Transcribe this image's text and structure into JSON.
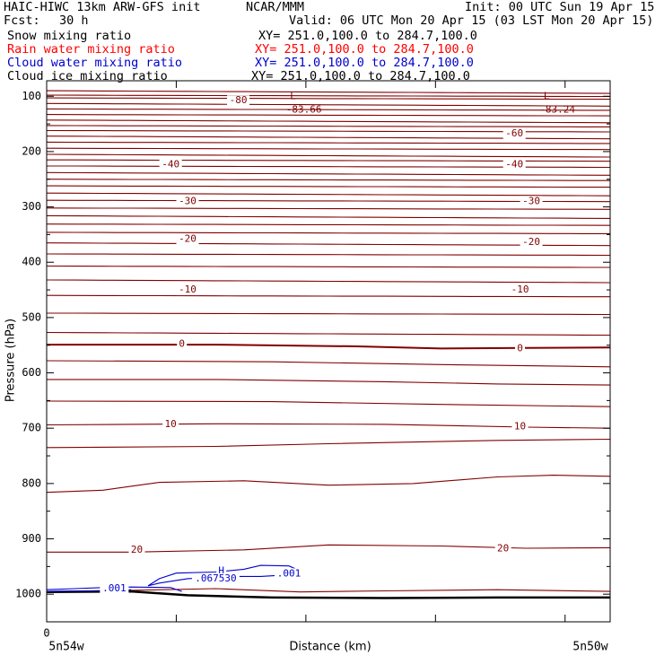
{
  "header": {
    "model": "HAIC-HIWC 13km ARW-GFS init",
    "center": "NCAR/MMM",
    "init": "Init: 00 UTC Sun 19 Apr 15",
    "fcst_label": "Fcst:",
    "fcst_value": "30 h",
    "valid": "Valid: 06 UTC Mon 20 Apr 15 (03 LST Mon 20 Apr 15)"
  },
  "fields": [
    {
      "label": "Snow mixing ratio",
      "xy": "XY= 251.0,100.0 to 284.7,100.0",
      "color": "#000000"
    },
    {
      "label": "Rain water mixing ratio",
      "xy": "XY= 251.0,100.0 to 284.7,100.0",
      "color": "#ff0000"
    },
    {
      "label": "Cloud water mixing ratio",
      "xy": "XY= 251.0,100.0 to 284.7,100.0",
      "color": "#0000cc"
    },
    {
      "label": "Cloud ice mixing ratio",
      "xy": "XY= 251.0,100.0 to 284.7,100.0",
      "color": "#000000"
    }
  ],
  "chart_data": {
    "type": "line",
    "xlabel": "Distance (km)",
    "ylabel": "Pressure (hPa)",
    "x_ticks": [
      "0"
    ],
    "x_end_labels": [
      "5n54w",
      "5n50w"
    ],
    "y_ticks": [
      100,
      200,
      300,
      400,
      500,
      600,
      700,
      800,
      900,
      1000
    ],
    "ylim": [
      1050,
      72
    ],
    "isotherm_color": "#800000",
    "cloud_color": "#0000cc",
    "isotherm_labels": [
      {
        "text": "-80",
        "x": 0.34,
        "p": 108
      },
      {
        "text": "-60",
        "x": 0.83,
        "p": 168
      },
      {
        "text": "-40",
        "x": 0.22,
        "p": 224
      },
      {
        "text": "-40",
        "x": 0.83,
        "p": 224
      },
      {
        "text": "-30",
        "x": 0.25,
        "p": 290
      },
      {
        "text": "-30",
        "x": 0.86,
        "p": 290
      },
      {
        "text": "-20",
        "x": 0.25,
        "p": 358
      },
      {
        "text": "-20",
        "x": 0.86,
        "p": 364
      },
      {
        "text": "-10",
        "x": 0.25,
        "p": 450
      },
      {
        "text": "-10",
        "x": 0.84,
        "p": 450
      },
      {
        "text": "0",
        "x": 0.24,
        "p": 548
      },
      {
        "text": "0",
        "x": 0.84,
        "p": 556
      },
      {
        "text": "10",
        "x": 0.22,
        "p": 693
      },
      {
        "text": "10",
        "x": 0.84,
        "p": 697
      },
      {
        "text": "20",
        "x": 0.16,
        "p": 920
      },
      {
        "text": "20",
        "x": 0.81,
        "p": 918
      }
    ],
    "lows": [
      {
        "marker": "L",
        "value": "-83.66",
        "x": 0.45,
        "p": 86
      },
      {
        "marker": "L",
        "value": "-83.24",
        "x": 0.9,
        "p": 86
      }
    ],
    "cloud_labels": [
      {
        "text": "H",
        "x": 0.31,
        "p": 958
      },
      {
        "text": ".067530",
        "x": 0.3,
        "p": 972
      },
      {
        "text": ".001",
        "x": 0.43,
        "p": 963
      },
      {
        "text": ".001",
        "x": 0.12,
        "p": 990
      }
    ]
  }
}
